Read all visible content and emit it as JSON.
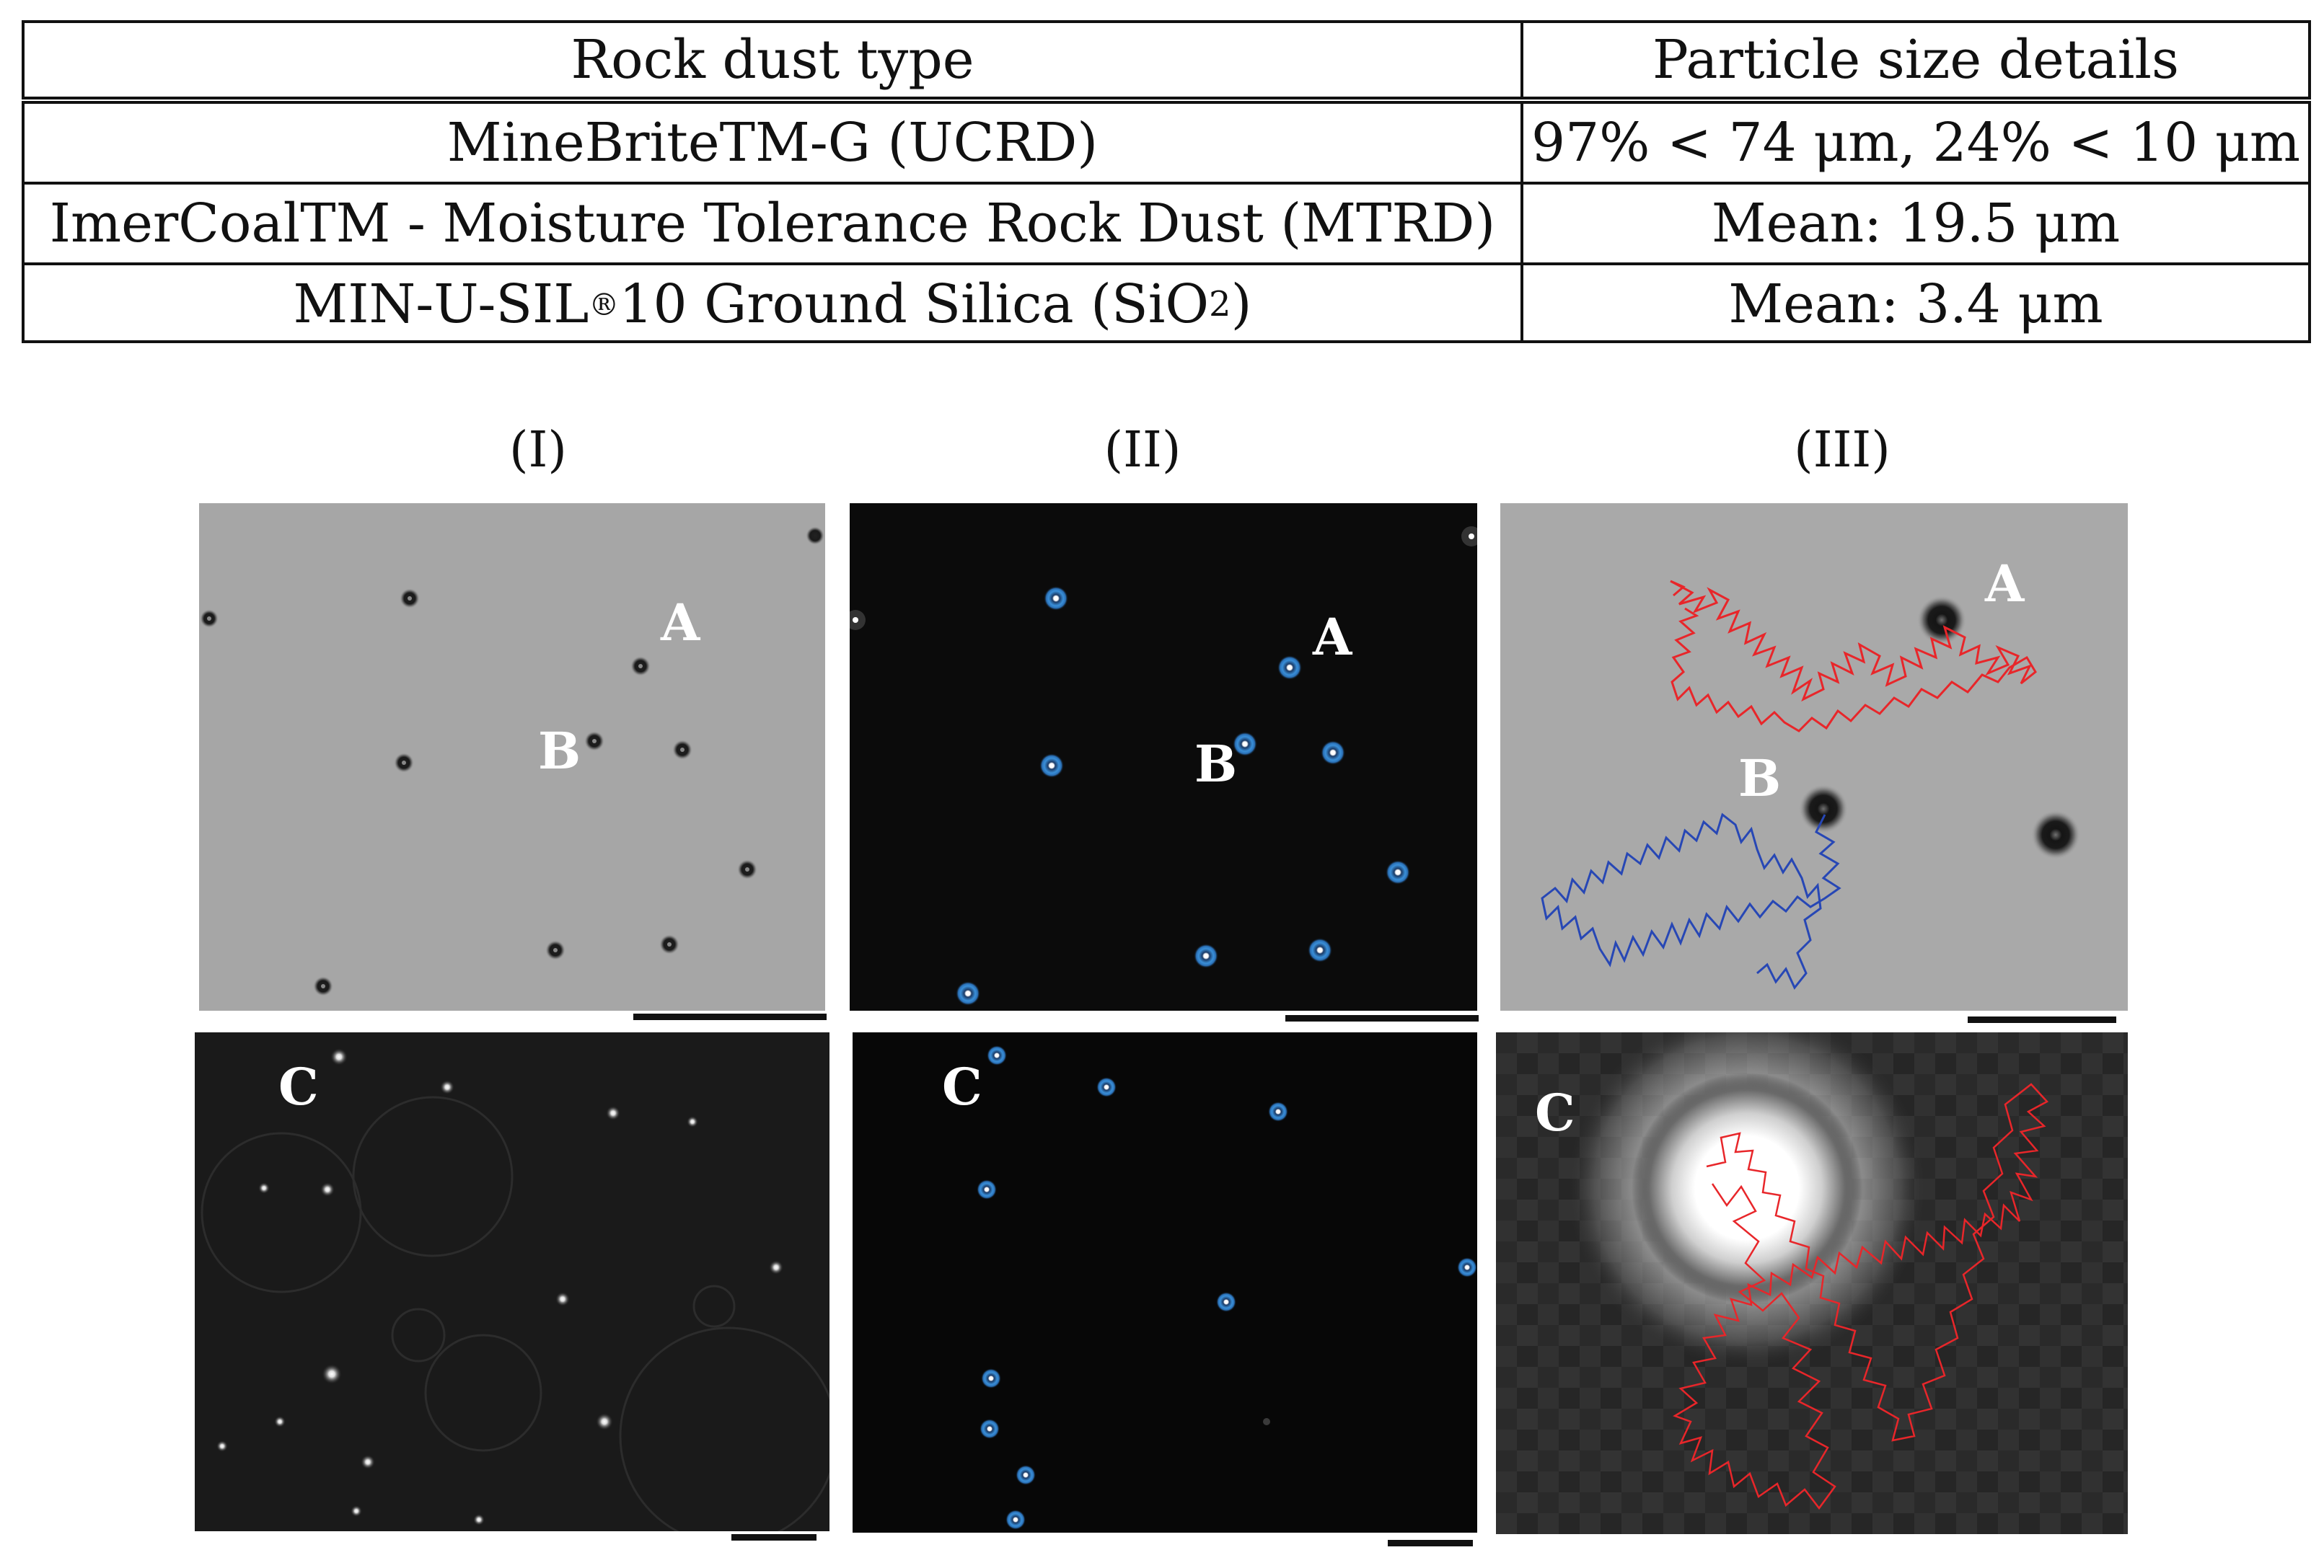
{
  "table": {
    "headers": [
      "Rock dust type",
      "Particle size details"
    ],
    "rows": [
      {
        "type": "MineBriteTM-G (UCRD)",
        "details": "97% < 74 μm, 24% < 10 μm"
      },
      {
        "type": "ImerCoalTM - Moisture Tolerance Rock Dust (MTRD)",
        "details": "Mean: 19.5 μm"
      },
      {
        "type_prefix": "MIN-U-SIL",
        "type_sup": "®",
        "type_mid": " 10 Ground Silica (SiO",
        "type_sub": "2",
        "type_suffix": ")",
        "details": "Mean: 3.4 μm"
      }
    ]
  },
  "figure": {
    "column_labels": [
      "(I)",
      "(II)",
      "(III)"
    ],
    "panel_labels": {
      "a": "A",
      "b": "B",
      "c": "C"
    },
    "colors": {
      "bright_field_bg": "#a6a6a6",
      "dark_bg": "#0b0b0b",
      "detection_marker": "#3a8fd8",
      "track_a": "#e8262a",
      "track_b": "#2747b5",
      "track_c": "#e8262a"
    }
  }
}
